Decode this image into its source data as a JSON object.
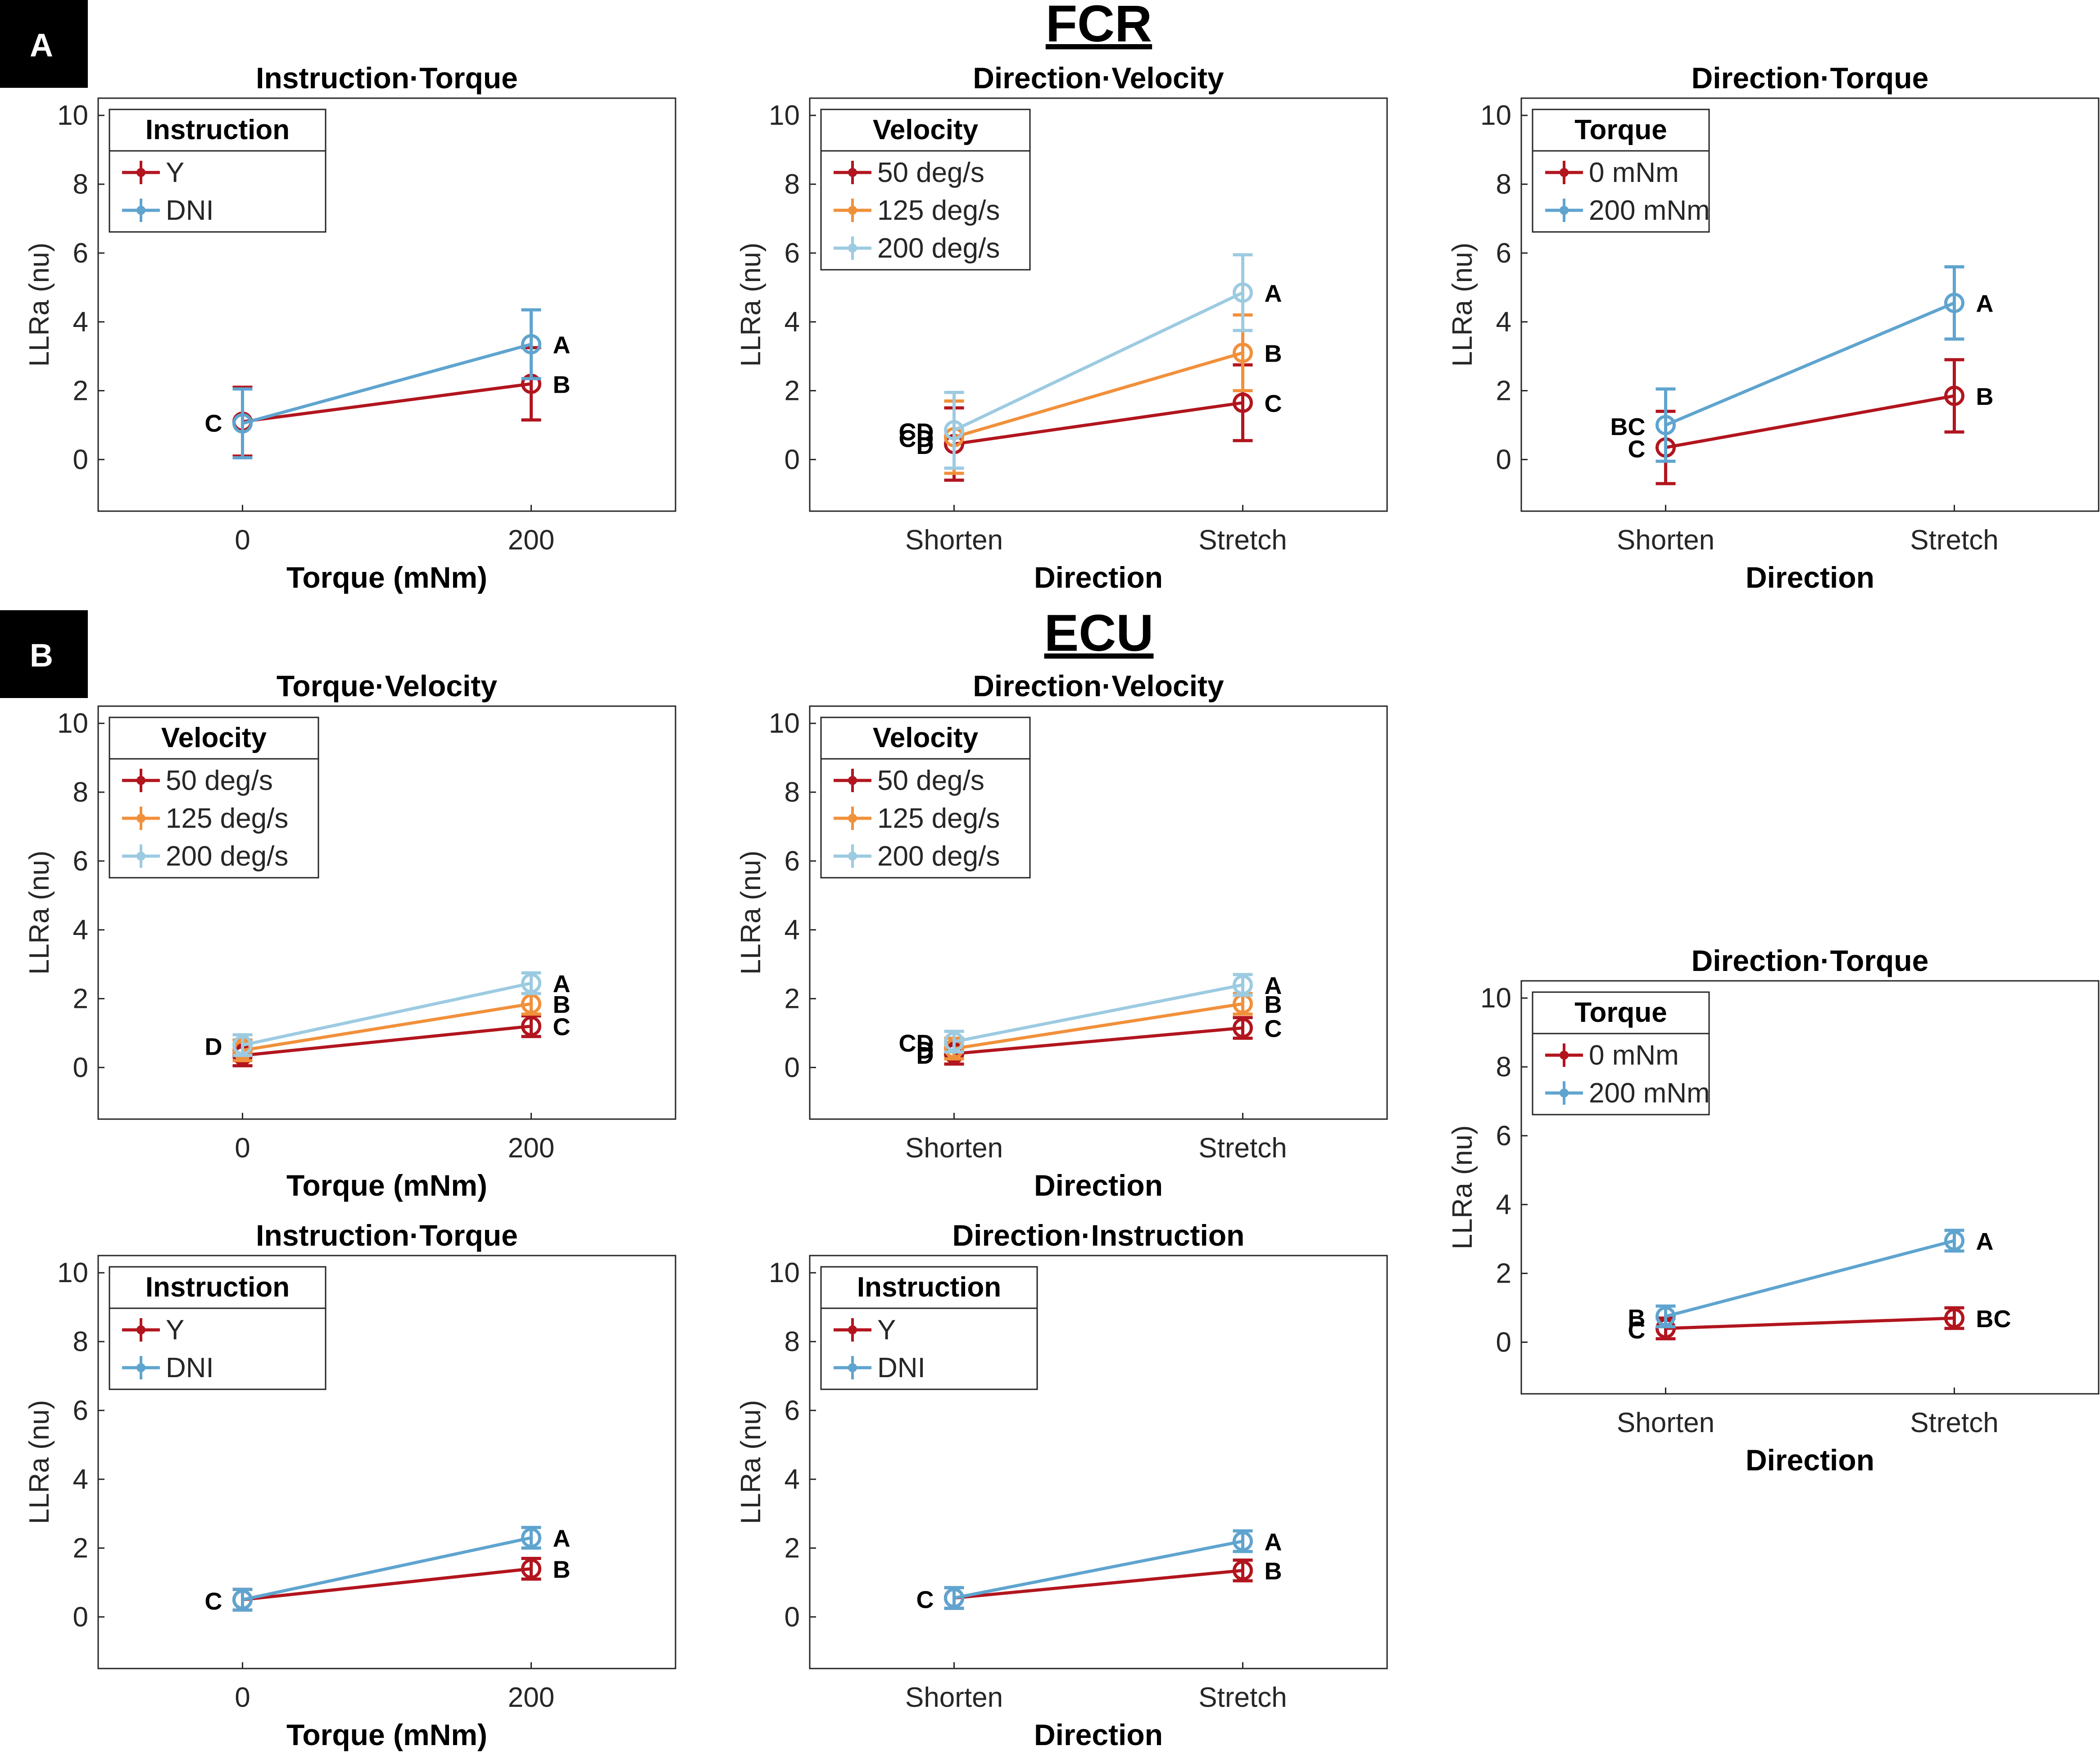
{
  "panels": [
    {
      "label": "A",
      "title": "FCR"
    },
    {
      "label": "B",
      "title": "ECU"
    }
  ],
  "colors": {
    "dark_red": "#b2151e",
    "orange": "#f1903b",
    "light_blue": "#9ccbe1",
    "blue": "#5fa4cf"
  },
  "chart_data": [
    {
      "id": "A1",
      "panel": "A",
      "type": "line",
      "title": "Instruction·Torque",
      "xlabel": "Torque (mNm)",
      "ylabel": "LLRa (nu)",
      "categories": [
        "0",
        "200"
      ],
      "ylim": [
        -1.5,
        10.5
      ],
      "yticks": [
        "0",
        "2",
        "4",
        "6",
        "8",
        "10"
      ],
      "legend_title": "Instruction",
      "legend_position": "top-left",
      "series": [
        {
          "name": "Y",
          "color": "#b2151e",
          "values": [
            1.1,
            2.2
          ],
          "err": [
            1.0,
            1.05
          ],
          "labels": [
            "C",
            "B"
          ]
        },
        {
          "name": "DNI",
          "color": "#5fa4cf",
          "values": [
            1.05,
            3.35
          ],
          "err": [
            1.0,
            1.0
          ],
          "labels": [
            "",
            "A"
          ]
        }
      ]
    },
    {
      "id": "A2",
      "panel": "A",
      "type": "line",
      "title": "Direction·Velocity",
      "xlabel": "Direction",
      "ylabel": "LLRa (nu)",
      "categories": [
        "Shorten",
        "Stretch"
      ],
      "ylim": [
        -1.5,
        10.5
      ],
      "yticks": [
        "0",
        "2",
        "4",
        "6",
        "8",
        "10"
      ],
      "legend_title": "Velocity",
      "legend_position": "top-left",
      "series": [
        {
          "name": "50 deg/s",
          "color": "#b2151e",
          "values": [
            0.45,
            1.65
          ],
          "err": [
            1.05,
            1.1
          ],
          "labels": [
            "D",
            "C"
          ]
        },
        {
          "name": "125 deg/s",
          "color": "#f1903b",
          "values": [
            0.65,
            3.1
          ],
          "err": [
            1.05,
            1.1
          ],
          "labels": [
            "CD",
            "B"
          ]
        },
        {
          "name": "200 deg/s",
          "color": "#9ccbe1",
          "values": [
            0.85,
            4.85
          ],
          "err": [
            1.1,
            1.1
          ],
          "labels": [
            "CD",
            "A"
          ]
        }
      ]
    },
    {
      "id": "A3",
      "panel": "A",
      "type": "line",
      "title": "Direction·Torque",
      "xlabel": "Direction",
      "ylabel": "LLRa (nu)",
      "categories": [
        "Shorten",
        "Stretch"
      ],
      "ylim": [
        -1.5,
        10.5
      ],
      "yticks": [
        "0",
        "2",
        "4",
        "6",
        "8",
        "10"
      ],
      "legend_title": "Torque",
      "legend_position": "top-left",
      "series": [
        {
          "name": "0 mNm",
          "color": "#b2151e",
          "values": [
            0.35,
            1.85
          ],
          "err": [
            1.05,
            1.05
          ],
          "labels": [
            "C",
            "B"
          ]
        },
        {
          "name": "200 mNm",
          "color": "#5fa4cf",
          "values": [
            1.0,
            4.55
          ],
          "err": [
            1.05,
            1.05
          ],
          "labels": [
            "BC",
            "A"
          ]
        }
      ]
    },
    {
      "id": "B1",
      "panel": "B",
      "type": "line",
      "title": "Torque·Velocity",
      "xlabel": "Torque (mNm)",
      "ylabel": "LLRa (nu)",
      "categories": [
        "0",
        "200"
      ],
      "ylim": [
        -1.5,
        10.5
      ],
      "yticks": [
        "0",
        "2",
        "4",
        "6",
        "8",
        "10"
      ],
      "legend_title": "Velocity",
      "legend_position": "top-left",
      "series": [
        {
          "name": "50 deg/s",
          "color": "#b2151e",
          "values": [
            0.35,
            1.2
          ],
          "err": [
            0.3,
            0.3
          ],
          "labels": [
            "",
            "C"
          ]
        },
        {
          "name": "125 deg/s",
          "color": "#f1903b",
          "values": [
            0.5,
            1.85
          ],
          "err": [
            0.3,
            0.3
          ],
          "labels": [
            "",
            "B"
          ]
        },
        {
          "name": "200 deg/s",
          "color": "#9ccbe1",
          "values": [
            0.65,
            2.45
          ],
          "err": [
            0.3,
            0.3
          ],
          "labels": [
            "D",
            "A"
          ]
        }
      ]
    },
    {
      "id": "B2",
      "panel": "B",
      "type": "line",
      "title": "Direction·Velocity",
      "xlabel": "Direction",
      "ylabel": "LLRa (nu)",
      "categories": [
        "Shorten",
        "Stretch"
      ],
      "ylim": [
        -1.5,
        10.5
      ],
      "yticks": [
        "0",
        "2",
        "4",
        "6",
        "8",
        "10"
      ],
      "legend_title": "Velocity",
      "legend_position": "top-left",
      "series": [
        {
          "name": "50 deg/s",
          "color": "#b2151e",
          "values": [
            0.4,
            1.15
          ],
          "err": [
            0.3,
            0.3
          ],
          "labels": [
            "D",
            "C"
          ]
        },
        {
          "name": "125 deg/s",
          "color": "#f1903b",
          "values": [
            0.55,
            1.85
          ],
          "err": [
            0.3,
            0.3
          ],
          "labels": [
            "D",
            "B"
          ]
        },
        {
          "name": "200 deg/s",
          "color": "#9ccbe1",
          "values": [
            0.75,
            2.4
          ],
          "err": [
            0.3,
            0.3
          ],
          "labels": [
            "CD",
            "A"
          ]
        }
      ]
    },
    {
      "id": "B3",
      "panel": "B",
      "type": "line",
      "title": "Direction·Torque",
      "xlabel": "Direction",
      "ylabel": "LLRa (nu)",
      "categories": [
        "Shorten",
        "Stretch"
      ],
      "ylim": [
        -1.5,
        10.5
      ],
      "yticks": [
        "0",
        "2",
        "4",
        "6",
        "8",
        "10"
      ],
      "legend_title": "Torque",
      "legend_position": "top-left",
      "series": [
        {
          "name": "0 mNm",
          "color": "#b2151e",
          "values": [
            0.4,
            0.7
          ],
          "err": [
            0.3,
            0.3
          ],
          "labels": [
            "C",
            "BC"
          ]
        },
        {
          "name": "200 mNm",
          "color": "#5fa4cf",
          "values": [
            0.75,
            2.95
          ],
          "err": [
            0.3,
            0.3
          ],
          "labels": [
            "B",
            "A"
          ]
        }
      ]
    },
    {
      "id": "B4",
      "panel": "B",
      "type": "line",
      "title": "Instruction·Torque",
      "xlabel": "Torque (mNm)",
      "ylabel": "LLRa (nu)",
      "categories": [
        "0",
        "200"
      ],
      "ylim": [
        -1.5,
        10.5
      ],
      "yticks": [
        "0",
        "2",
        "4",
        "6",
        "8",
        "10"
      ],
      "legend_title": "Instruction",
      "legend_position": "top-left",
      "series": [
        {
          "name": "Y",
          "color": "#b2151e",
          "values": [
            0.5,
            1.4
          ],
          "err": [
            0.3,
            0.3
          ],
          "labels": [
            "",
            "B"
          ]
        },
        {
          "name": "DNI",
          "color": "#5fa4cf",
          "values": [
            0.5,
            2.3
          ],
          "err": [
            0.3,
            0.3
          ],
          "labels": [
            "C",
            "A"
          ]
        }
      ]
    },
    {
      "id": "B5",
      "panel": "B",
      "type": "line",
      "title": "Direction·Instruction",
      "xlabel": "Direction",
      "ylabel": "LLRa (nu)",
      "categories": [
        "Shorten",
        "Stretch"
      ],
      "ylim": [
        -1.5,
        10.5
      ],
      "yticks": [
        "0",
        "2",
        "4",
        "6",
        "8",
        "10"
      ],
      "legend_title": "Instruction",
      "legend_position": "top-left",
      "series": [
        {
          "name": "Y",
          "color": "#b2151e",
          "values": [
            0.55,
            1.35
          ],
          "err": [
            0.3,
            0.3
          ],
          "labels": [
            "",
            "B"
          ]
        },
        {
          "name": "DNI",
          "color": "#5fa4cf",
          "values": [
            0.55,
            2.2
          ],
          "err": [
            0.3,
            0.3
          ],
          "labels": [
            "C",
            "A"
          ]
        }
      ]
    }
  ]
}
